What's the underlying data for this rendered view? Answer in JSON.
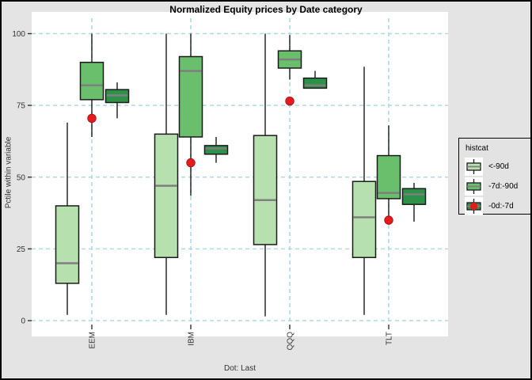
{
  "figure": {
    "title": "Normalized Equity prices by Date category",
    "caption": "Dot: Last",
    "background": "#e4e4e4",
    "panel_background": "#ffffff",
    "grid_color": "#aed8e6"
  },
  "y_axis": {
    "label": "Pctile within variable",
    "ticks": [
      "0",
      "25",
      "50",
      "75",
      "100"
    ]
  },
  "x_axis": {
    "categories": [
      "EEM",
      "IBM",
      "QQQ",
      "TLT"
    ]
  },
  "legend": {
    "title": "histcat",
    "dot_color": "#e41a1c",
    "items": [
      {
        "label": "<-90d",
        "color": "#b6e0ad",
        "dot": false
      },
      {
        "label": "-7d:-90d",
        "color": "#69bf6b",
        "dot": false
      },
      {
        "label": "-0d:-7d",
        "color": "#2e9148",
        "dot": true
      }
    ]
  },
  "chart_data": {
    "type": "boxplot",
    "title": "Normalized Equity prices by Date category",
    "ylabel": "Pctile within variable",
    "xlabel": "",
    "caption": "Dot: Last",
    "legend_title": "histcat",
    "legend_position": "right",
    "grid": "dashed light-blue on white panel",
    "categories": [
      "EEM",
      "IBM",
      "QQQ",
      "TLT"
    ],
    "ylim": [
      0,
      100
    ],
    "yticks": [
      0,
      25,
      50,
      75,
      100
    ],
    "series": [
      {
        "name": "<-90d",
        "color": "#b6e0ad",
        "stats": [
          {
            "min": 2,
            "q1": 13,
            "median": 20,
            "q3": 40,
            "max": 69
          },
          {
            "min": 2,
            "q1": 22,
            "median": 47,
            "q3": 65,
            "max": 100
          },
          {
            "min": 1.5,
            "q1": 26.5,
            "median": 42,
            "q3": 64.5,
            "max": 100
          },
          {
            "min": 2,
            "q1": 22,
            "median": 36,
            "q3": 48.5,
            "max": 88.5
          }
        ]
      },
      {
        "name": "-7d:-90d",
        "color": "#69bf6b",
        "stats": [
          {
            "min": 64,
            "q1": 77,
            "median": 82,
            "q3": 90,
            "max": 100
          },
          {
            "min": 43.5,
            "q1": 64,
            "median": 87,
            "q3": 92,
            "max": 100
          },
          {
            "min": 84,
            "q1": 88,
            "median": 91,
            "q3": 94,
            "max": 99.5
          },
          {
            "min": 35,
            "q1": 42.5,
            "median": 44.5,
            "q3": 57.5,
            "max": 68
          }
        ]
      },
      {
        "name": "-0d:-7d",
        "color": "#2e9148",
        "stats": [
          {
            "min": 70.5,
            "q1": 76,
            "median": 78.5,
            "q3": 80.5,
            "max": 83
          },
          {
            "min": 55,
            "q1": 58,
            "median": 60,
            "q3": 61,
            "max": 64
          },
          {
            "min": 81,
            "q1": 81,
            "median": 82,
            "q3": 84.5,
            "max": 87
          },
          {
            "min": 34.5,
            "q1": 40.5,
            "median": 44,
            "q3": 46,
            "max": 48
          }
        ]
      }
    ],
    "last_dots": {
      "name": "Last",
      "series_label": "-0d:-7d",
      "color": "#e41a1c",
      "values": [
        70.5,
        55,
        76.5,
        35
      ]
    }
  }
}
